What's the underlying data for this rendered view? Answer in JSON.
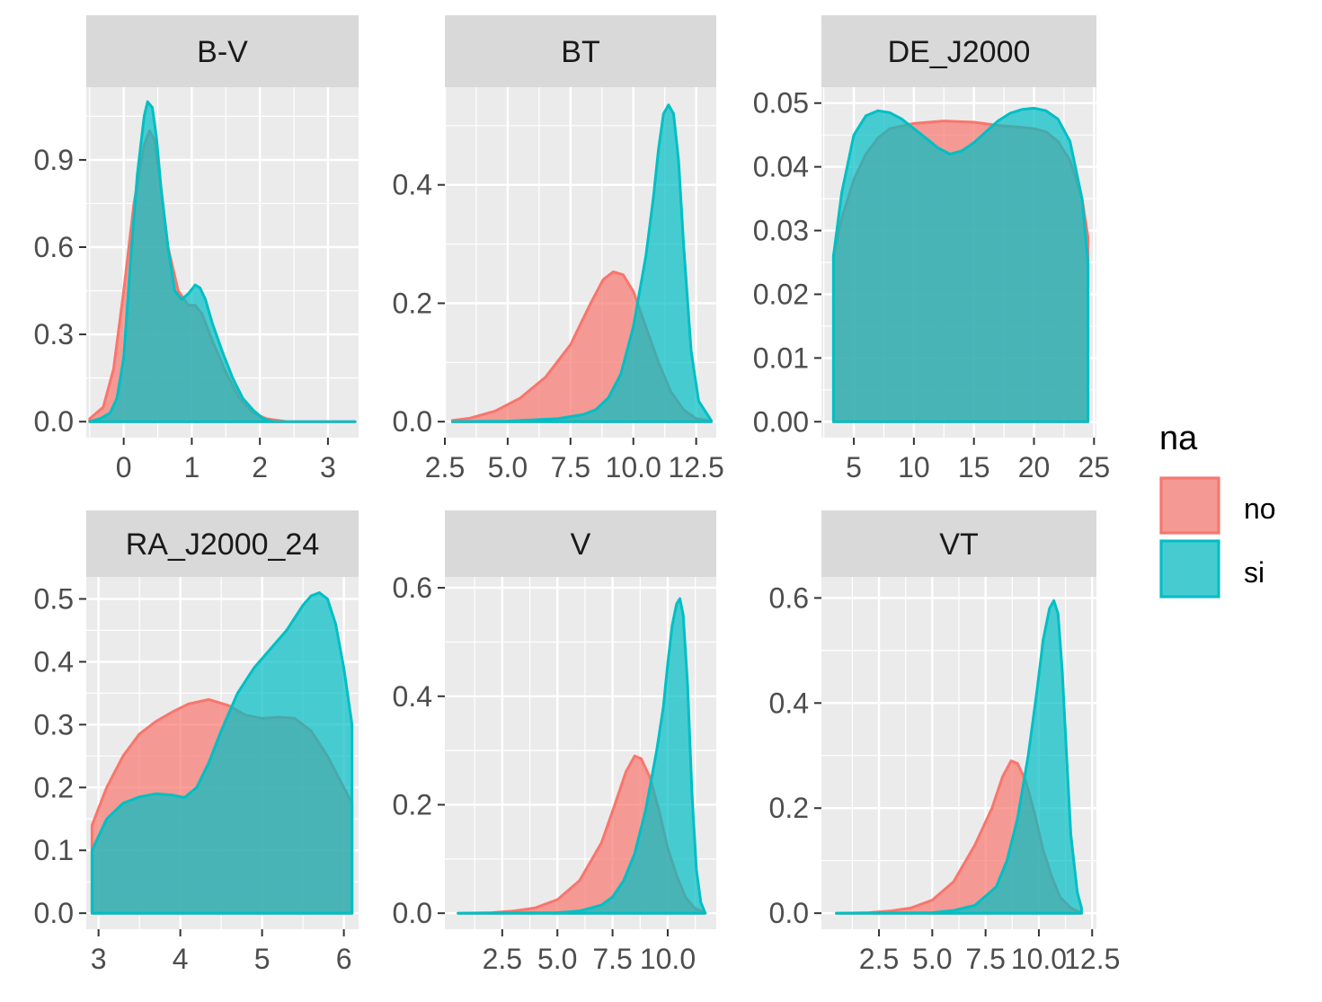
{
  "chart_data": {
    "type": "area",
    "fill_variable": "na",
    "groups": [
      {
        "name": "no",
        "color": "#F8766D"
      },
      {
        "name": "si",
        "color": "#00BFC4"
      }
    ],
    "panels": [
      {
        "title": "B-V",
        "xlim": [
          -0.55,
          3.45
        ],
        "ylim": [
          -0.055,
          1.15
        ],
        "xticks": [
          0,
          1,
          2,
          3
        ],
        "xtick_labels": [
          "0",
          "1",
          "2",
          "3"
        ],
        "yticks": [
          0,
          0.3,
          0.6,
          0.9
        ],
        "ytick_labels": [
          "0.0",
          "0.3",
          "0.6",
          "0.9"
        ],
        "series": [
          {
            "name": "no",
            "x": [
              -0.5,
              -0.3,
              -0.15,
              0,
              0.15,
              0.3,
              0.38,
              0.45,
              0.55,
              0.65,
              0.8,
              0.95,
              1.05,
              1.15,
              1.3,
              1.5,
              1.7,
              1.9,
              2.1,
              2.4,
              2.7,
              3,
              3.4
            ],
            "y": [
              0.01,
              0.05,
              0.18,
              0.45,
              0.75,
              0.95,
              1.0,
              0.97,
              0.8,
              0.6,
              0.45,
              0.4,
              0.4,
              0.37,
              0.28,
              0.17,
              0.08,
              0.03,
              0.01,
              0,
              0,
              0,
              0
            ]
          },
          {
            "name": "si",
            "x": [
              -0.5,
              -0.35,
              -0.2,
              -0.1,
              0,
              0.1,
              0.2,
              0.3,
              0.35,
              0.42,
              0.48,
              0.55,
              0.65,
              0.75,
              0.85,
              0.95,
              1.05,
              1.12,
              1.2,
              1.3,
              1.45,
              1.6,
              1.75,
              1.9,
              2.05,
              2.2,
              2.6,
              3,
              3.4
            ],
            "y": [
              0,
              0.01,
              0.03,
              0.08,
              0.22,
              0.55,
              0.85,
              1.05,
              1.1,
              1.08,
              0.98,
              0.8,
              0.6,
              0.45,
              0.42,
              0.44,
              0.47,
              0.46,
              0.42,
              0.34,
              0.24,
              0.15,
              0.08,
              0.04,
              0.01,
              0,
              0,
              0,
              0
            ]
          }
        ]
      },
      {
        "title": "BT",
        "xlim": [
          2.5,
          13.3
        ],
        "ylim": [
          -0.027,
          0.565
        ],
        "xticks": [
          2.5,
          5.0,
          7.5,
          10.0,
          12.5
        ],
        "xtick_labels": [
          "2.5",
          "5.0",
          "7.5",
          "10.0",
          "12.5"
        ],
        "yticks": [
          0,
          0.2,
          0.4
        ],
        "ytick_labels": [
          "0.0",
          "0.2",
          "0.4"
        ],
        "series": [
          {
            "name": "no",
            "x": [
              2.8,
              3.5,
              4.5,
              5.5,
              6.5,
              7.5,
              8.3,
              8.8,
              9.2,
              9.6,
              10.0,
              10.5,
              11.0,
              11.5,
              12.0,
              12.5,
              13.1
            ],
            "y": [
              0.002,
              0.006,
              0.018,
              0.04,
              0.075,
              0.13,
              0.2,
              0.24,
              0.253,
              0.248,
              0.22,
              0.16,
              0.1,
              0.05,
              0.02,
              0.005,
              0.001
            ]
          },
          {
            "name": "si",
            "x": [
              2.8,
              5,
              7,
              8,
              8.5,
              9,
              9.5,
              10,
              10.5,
              10.8,
              11.0,
              11.2,
              11.4,
              11.6,
              11.8,
              12.0,
              12.3,
              12.6,
              13.1
            ],
            "y": [
              0,
              0.001,
              0.005,
              0.012,
              0.02,
              0.04,
              0.08,
              0.16,
              0.28,
              0.38,
              0.46,
              0.52,
              0.535,
              0.52,
              0.44,
              0.3,
              0.12,
              0.035,
              0.002
            ]
          }
        ]
      },
      {
        "title": "DE_J2000",
        "xlim": [
          2.3,
          25.2
        ],
        "ylim": [
          -0.0025,
          0.0525
        ],
        "xticks": [
          5,
          10,
          15,
          20,
          25
        ],
        "xtick_labels": [
          "5",
          "10",
          "15",
          "20",
          "25"
        ],
        "yticks": [
          0,
          0.01,
          0.02,
          0.03,
          0.04,
          0.05
        ],
        "ytick_labels": [
          "0.00",
          "0.01",
          "0.02",
          "0.03",
          "0.04",
          "0.05"
        ],
        "series": [
          {
            "name": "no",
            "x": [
              3.3,
              4,
              5,
              6,
              7,
              8,
              10,
              12.5,
              15,
              17,
              19,
              20,
              21,
              22,
              23,
              24,
              24.5
            ],
            "y": [
              0.026,
              0.032,
              0.038,
              0.042,
              0.0445,
              0.046,
              0.0468,
              0.0472,
              0.047,
              0.0465,
              0.0462,
              0.046,
              0.0455,
              0.044,
              0.041,
              0.035,
              0.029
            ]
          },
          {
            "name": "si",
            "x": [
              3.3,
              4,
              5,
              6,
              7,
              8,
              9,
              10,
              11,
              12,
              13,
              14,
              15,
              16,
              17,
              18,
              19,
              20,
              21,
              22,
              23,
              24,
              24.5
            ],
            "y": [
              0.026,
              0.036,
              0.045,
              0.048,
              0.0488,
              0.0485,
              0.0475,
              0.046,
              0.0445,
              0.043,
              0.042,
              0.0425,
              0.0438,
              0.0455,
              0.0472,
              0.0484,
              0.049,
              0.0492,
              0.0488,
              0.0475,
              0.044,
              0.035,
              0.025
            ]
          }
        ]
      },
      {
        "title": "RA_J2000_24",
        "xlim": [
          2.85,
          6.18
        ],
        "ylim": [
          -0.0255,
          0.535
        ],
        "xticks": [
          3,
          4,
          5,
          6
        ],
        "xtick_labels": [
          "3",
          "4",
          "5",
          "6"
        ],
        "yticks": [
          0,
          0.1,
          0.2,
          0.3,
          0.4,
          0.5
        ],
        "ytick_labels": [
          "0.0",
          "0.1",
          "0.2",
          "0.3",
          "0.4",
          "0.5"
        ],
        "series": [
          {
            "name": "no",
            "x": [
              2.92,
              3.1,
              3.3,
              3.5,
              3.7,
              3.9,
              4.1,
              4.35,
              4.6,
              4.8,
              5.0,
              5.2,
              5.4,
              5.6,
              5.8,
              6.0,
              6.1
            ],
            "y": [
              0.14,
              0.2,
              0.25,
              0.285,
              0.305,
              0.32,
              0.333,
              0.34,
              0.33,
              0.315,
              0.31,
              0.312,
              0.31,
              0.29,
              0.25,
              0.2,
              0.175
            ]
          },
          {
            "name": "si",
            "x": [
              2.92,
              3.1,
              3.3,
              3.5,
              3.7,
              3.9,
              4.05,
              4.2,
              4.35,
              4.5,
              4.7,
              4.9,
              5.1,
              5.3,
              5.5,
              5.6,
              5.7,
              5.8,
              5.9,
              6.0,
              6.1
            ],
            "y": [
              0.1,
              0.15,
              0.175,
              0.185,
              0.19,
              0.188,
              0.184,
              0.2,
              0.24,
              0.29,
              0.35,
              0.39,
              0.42,
              0.45,
              0.49,
              0.505,
              0.51,
              0.5,
              0.46,
              0.39,
              0.3
            ]
          }
        ]
      },
      {
        "title": "V",
        "xlim": [
          -0.1,
          12.2
        ],
        "ylim": [
          -0.0295,
          0.62
        ],
        "xticks": [
          2.5,
          5.0,
          7.5,
          10.0
        ],
        "xtick_labels": [
          "2.5",
          "5.0",
          "7.5",
          "10.0"
        ],
        "yticks": [
          0,
          0.2,
          0.4,
          0.6
        ],
        "ytick_labels": [
          "0.0",
          "0.2",
          "0.4",
          "0.6"
        ],
        "series": [
          {
            "name": "no",
            "x": [
              0.5,
              2,
              3,
              4,
              5,
              6,
              7,
              7.6,
              8.1,
              8.5,
              8.8,
              9.2,
              9.6,
              10.0,
              10.4,
              10.8,
              11.2,
              11.7
            ],
            "y": [
              0,
              0.001,
              0.004,
              0.01,
              0.025,
              0.06,
              0.13,
              0.2,
              0.26,
              0.29,
              0.285,
              0.25,
              0.19,
              0.12,
              0.07,
              0.03,
              0.01,
              0
            ]
          },
          {
            "name": "si",
            "x": [
              0.5,
              5,
              6,
              7,
              7.5,
              8,
              8.5,
              9,
              9.5,
              9.8,
              10.0,
              10.2,
              10.4,
              10.55,
              10.7,
              10.9,
              11.1,
              11.3,
              11.5,
              11.7
            ],
            "y": [
              0,
              0.001,
              0.004,
              0.015,
              0.03,
              0.06,
              0.11,
              0.19,
              0.3,
              0.38,
              0.46,
              0.53,
              0.57,
              0.58,
              0.55,
              0.42,
              0.22,
              0.08,
              0.02,
              0
            ]
          }
        ]
      },
      {
        "title": "VT",
        "xlim": [
          -0.2,
          12.7
        ],
        "ylim": [
          -0.0305,
          0.64
        ],
        "xticks": [
          2.5,
          5.0,
          7.5,
          10.0,
          12.5
        ],
        "xtick_labels": [
          "2.5",
          "5.0",
          "7.5",
          "10.0",
          "12.5"
        ],
        "yticks": [
          0,
          0.2,
          0.4,
          0.6
        ],
        "ytick_labels": [
          "0.0",
          "0.2",
          "0.4",
          "0.6"
        ],
        "series": [
          {
            "name": "no",
            "x": [
              0.5,
              2,
              3,
              4,
              5,
              6,
              7,
              7.8,
              8.3,
              8.7,
              9.0,
              9.4,
              9.8,
              10.2,
              10.6,
              11.0,
              11.5,
              12.0
            ],
            "y": [
              0,
              0.001,
              0.004,
              0.01,
              0.025,
              0.06,
              0.13,
              0.2,
              0.26,
              0.29,
              0.285,
              0.25,
              0.19,
              0.12,
              0.07,
              0.03,
              0.01,
              0
            ]
          },
          {
            "name": "si",
            "x": [
              0.5,
              5,
              6,
              7,
              8,
              8.5,
              9,
              9.5,
              9.9,
              10.2,
              10.5,
              10.7,
              10.9,
              11.1,
              11.3,
              11.5,
              11.8,
              12.0
            ],
            "y": [
              0,
              0.001,
              0.005,
              0.015,
              0.05,
              0.1,
              0.18,
              0.3,
              0.42,
              0.52,
              0.58,
              0.595,
              0.57,
              0.46,
              0.3,
              0.15,
              0.04,
              0.01
            ]
          }
        ]
      }
    ],
    "legend": {
      "title": "na",
      "placement": "right",
      "entries": [
        "no",
        "si"
      ]
    }
  }
}
